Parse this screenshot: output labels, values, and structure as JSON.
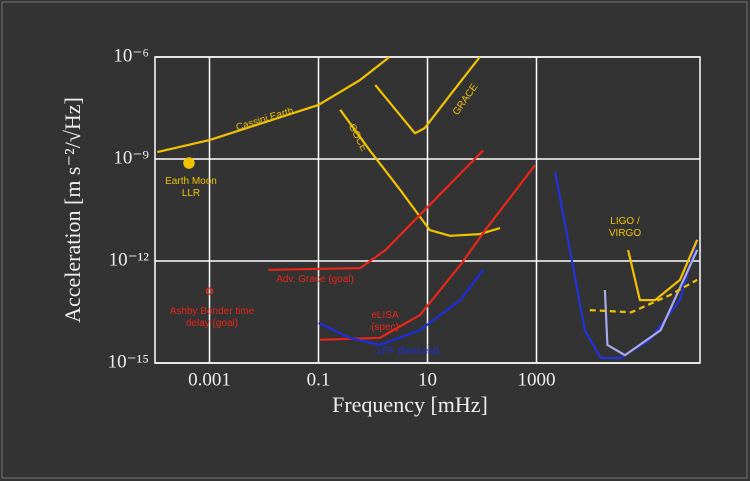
{
  "chart_data": {
    "type": "line",
    "xlabel": "Frequency [mHz]",
    "ylabel": "Acceleration [m s⁻²/√Hz]",
    "xscale": "log",
    "yscale": "log",
    "grid": true,
    "xlim": [
      0.0001,
      1000000
    ],
    "ylim": [
      1e-15,
      1e-06
    ],
    "xticks": [
      0.001,
      0.1,
      10,
      1000
    ],
    "yticks": [
      {
        "value": 1e-15,
        "label": "10⁻¹⁵"
      },
      {
        "value": 1e-12,
        "label": "10⁻¹²"
      },
      {
        "value": 1e-09,
        "label": "10⁻⁹"
      },
      {
        "value": 1e-06,
        "label": "10⁻⁶"
      }
    ],
    "series": [
      {
        "name": "Cassini Earth",
        "color": "#f2c200",
        "x": [
          0.00011,
          0.001,
          0.1,
          0.58,
          2.0
        ],
        "values": [
          1.6e-09,
          3.6e-09,
          3.9e-08,
          2.1e-07,
          1e-06
        ]
      },
      {
        "name": "GRACE",
        "color": "#f2c200",
        "x": [
          1.1,
          5.9,
          8.9,
          26,
          91
        ],
        "values": [
          1.5e-07,
          5.7e-09,
          8.1e-09,
          7.6e-08,
          1e-06
        ]
      },
      {
        "name": "GOCE",
        "color": "#f2c200",
        "x": [
          0.25,
          0.87,
          3.2,
          11,
          26,
          91,
          214
        ],
        "values": [
          2.8e-08,
          1.8e-09,
          1.2e-10,
          8.1e-12,
          5.5e-12,
          6.2e-12,
          9.3e-12
        ]
      },
      {
        "name": "Adv. Grace (goal)",
        "color": "#e8261a",
        "x": [
          0.012,
          0.58,
          1.7,
          11,
          105
        ],
        "values": [
          5.5e-13,
          6.2e-13,
          2.1e-12,
          4.5e-11,
          1.8e-09
        ]
      },
      {
        "name": "eLISA (spec)",
        "color": "#e8261a",
        "x": [
          0.107,
          1.34,
          7.3,
          40,
          115,
          940
        ],
        "values": [
          4.8e-15,
          5.5e-15,
          2.6e-14,
          7.6e-13,
          8.1e-12,
          6.6e-10
        ]
      },
      {
        "name": "LPF (best est)",
        "color": "#1a2ee0",
        "x": [
          0.1,
          0.37,
          1.34,
          7.3,
          40,
          105
        ],
        "values": [
          1.5e-14,
          5.5e-15,
          3.4e-15,
          9.3e-15,
          7.1e-14,
          5.5e-13
        ]
      },
      {
        "color": "#2233dd",
        "x": [
          2200,
          4100,
          7700,
          15000,
          34000,
          120000,
          430000,
          890000
        ],
        "values": [
          4.1e-10,
          2.1e-12,
          9.3e-15,
          1.4e-15,
          1.4e-15,
          4.8e-15,
          7.1e-14,
          4.2e-12
        ]
      },
      {
        "color": "#a9a9e8",
        "x": [
          18000,
          20000,
          42000,
          190000,
          890000
        ],
        "values": [
          1.4e-13,
          3.4e-15,
          1.7e-15,
          9.3e-15,
          2.1e-12
        ]
      },
      {
        "name": "LIGO / VIRGO",
        "color": "#f2c200",
        "x": [
          48000,
          79000,
          150000,
          430000,
          890000
        ],
        "values": [
          2.1e-12,
          7.1e-14,
          7.1e-14,
          2.8e-13,
          4.2e-12
        ]
      },
      {
        "color": "#f2c200",
        "dashed": true,
        "x": [
          9500,
          55000,
          280000,
          890000
        ],
        "values": [
          3.6e-14,
          3.1e-14,
          9.9e-14,
          2.8e-13
        ]
      }
    ],
    "points": [
      {
        "name": "Earth Moon LLR",
        "color": "#f2c200",
        "filled": true,
        "x": 0.00042,
        "y": 7.6e-10
      },
      {
        "name": "Ashby Bender time delay (goal)",
        "color": "#e8261a",
        "filled": false,
        "x": 0.001,
        "y": 1.3e-13
      }
    ]
  }
}
